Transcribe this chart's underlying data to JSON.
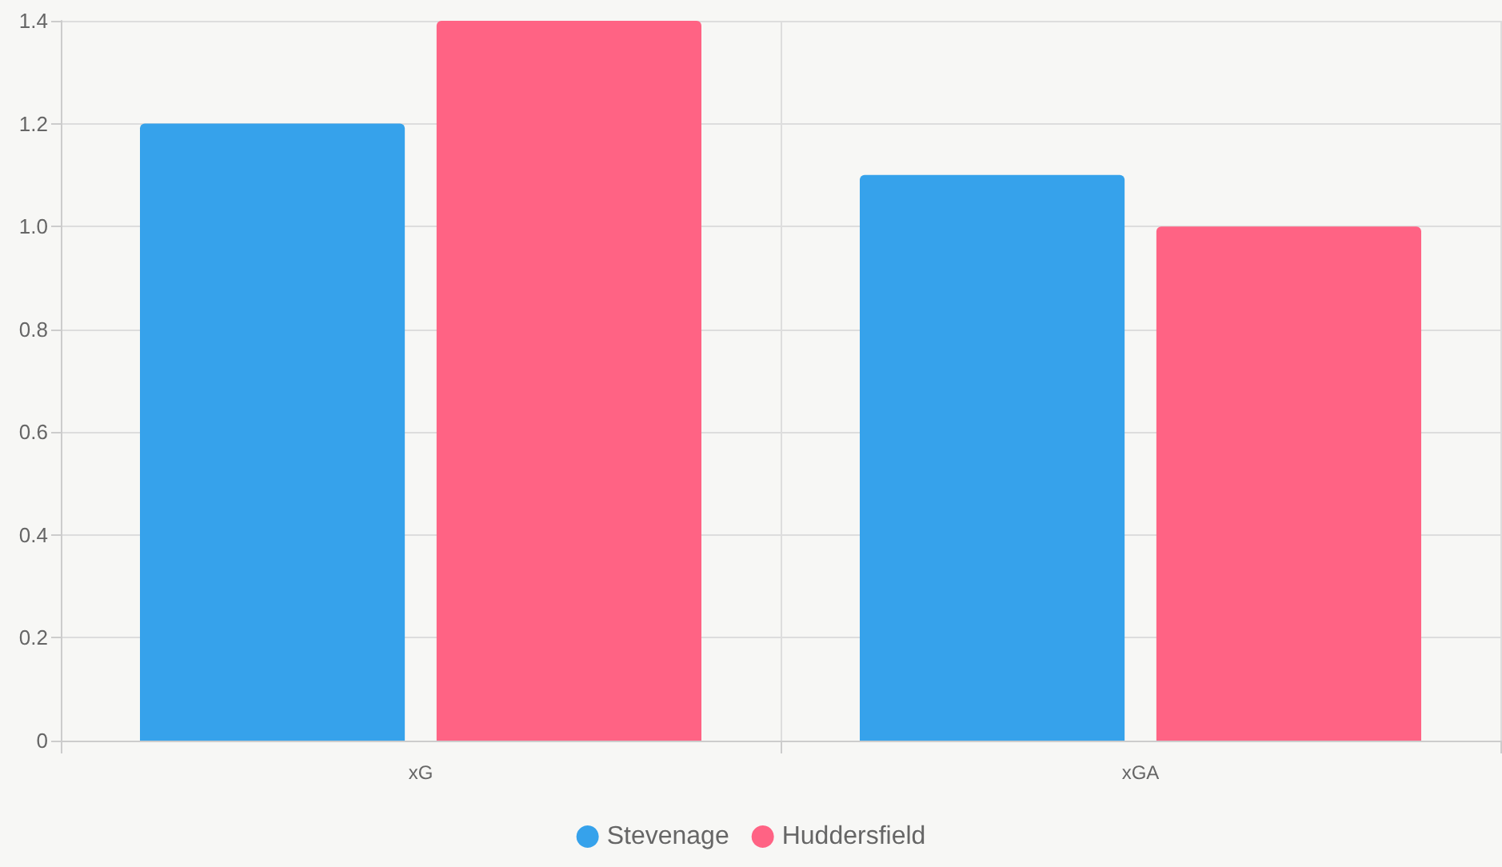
{
  "chart_data": {
    "type": "bar",
    "categories": [
      "xG",
      "xGA"
    ],
    "series": [
      {
        "name": "Stevenage",
        "color": "#36a2eb",
        "values": [
          1.2,
          1.1
        ]
      },
      {
        "name": "Huddersfield",
        "color": "#ff6384",
        "values": [
          1.4,
          1.0
        ]
      }
    ],
    "ylim": [
      0,
      1.4
    ],
    "yticks": [
      0,
      0.2,
      0.4,
      0.6,
      0.8,
      {
        "value": 1,
        "label": "1.0"
      },
      1.2,
      1.4
    ],
    "grid": true,
    "legend": "bottom"
  }
}
